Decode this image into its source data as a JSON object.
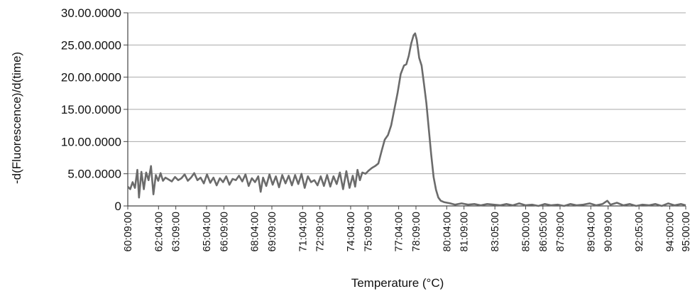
{
  "chart_data": {
    "type": "line",
    "title": "",
    "xlabel": "Temperature (°C)",
    "ylabel": "-d(Fluorescence)/d(time)",
    "ylim": [
      0,
      30
    ],
    "grid": "horizontal",
    "y_ticks": [
      {
        "value": 0,
        "label": "0"
      },
      {
        "value": 5,
        "label": "5.00.0000"
      },
      {
        "value": 10,
        "label": "10.00.0000"
      },
      {
        "value": 15,
        "label": "15.00.0000"
      },
      {
        "value": 20,
        "label": "20.00.0000"
      },
      {
        "value": 25,
        "label": "25.00.0000"
      },
      {
        "value": 30,
        "label": "30.00.0000"
      }
    ],
    "x_range": [
      60.15,
      95.0
    ],
    "x_ticks": [
      {
        "value": 60.15,
        "label": "60:09:00"
      },
      {
        "value": 62.07,
        "label": "62:04:00"
      },
      {
        "value": 63.15,
        "label": "63:09:00"
      },
      {
        "value": 65.07,
        "label": "65:04:00"
      },
      {
        "value": 66.15,
        "label": "66:09:00"
      },
      {
        "value": 68.07,
        "label": "68:04:00"
      },
      {
        "value": 69.15,
        "label": "69:09:00"
      },
      {
        "value": 71.07,
        "label": "71:04:00"
      },
      {
        "value": 72.15,
        "label": "72:09:00"
      },
      {
        "value": 74.07,
        "label": "74:04:00"
      },
      {
        "value": 75.15,
        "label": "75:09:00"
      },
      {
        "value": 77.07,
        "label": "77:04:00"
      },
      {
        "value": 78.15,
        "label": "78:09:00"
      },
      {
        "value": 80.07,
        "label": "80:04:00"
      },
      {
        "value": 81.15,
        "label": "81:09:00"
      },
      {
        "value": 83.08,
        "label": "83:05:00"
      },
      {
        "value": 85.0,
        "label": "85:00:00"
      },
      {
        "value": 86.08,
        "label": "86:05:00"
      },
      {
        "value": 87.15,
        "label": "87:09:00"
      },
      {
        "value": 89.07,
        "label": "89:04:00"
      },
      {
        "value": 90.15,
        "label": "90:09:00"
      },
      {
        "value": 92.08,
        "label": "92:05:00"
      },
      {
        "value": 94.0,
        "label": "94:00:00"
      },
      {
        "value": 95.0,
        "label": "95:00:00"
      }
    ],
    "series": [
      {
        "color": "#6b6b6b",
        "points": [
          [
            60.15,
            3.0
          ],
          [
            60.3,
            2.6
          ],
          [
            60.45,
            3.7
          ],
          [
            60.6,
            2.8
          ],
          [
            60.75,
            5.6
          ],
          [
            60.85,
            1.3
          ],
          [
            61.0,
            5.3
          ],
          [
            61.15,
            2.6
          ],
          [
            61.3,
            5.2
          ],
          [
            61.45,
            4.0
          ],
          [
            61.6,
            6.2
          ],
          [
            61.75,
            1.8
          ],
          [
            61.9,
            4.8
          ],
          [
            62.05,
            3.9
          ],
          [
            62.2,
            5.1
          ],
          [
            62.35,
            3.9
          ],
          [
            62.5,
            4.4
          ],
          [
            62.7,
            4.1
          ],
          [
            62.9,
            3.8
          ],
          [
            63.1,
            4.5
          ],
          [
            63.3,
            4.0
          ],
          [
            63.5,
            4.3
          ],
          [
            63.7,
            4.9
          ],
          [
            63.9,
            3.9
          ],
          [
            64.1,
            4.4
          ],
          [
            64.3,
            5.1
          ],
          [
            64.5,
            4.0
          ],
          [
            64.7,
            4.4
          ],
          [
            64.9,
            3.5
          ],
          [
            65.1,
            4.9
          ],
          [
            65.3,
            3.6
          ],
          [
            65.5,
            4.4
          ],
          [
            65.7,
            3.2
          ],
          [
            65.9,
            4.3
          ],
          [
            66.1,
            3.7
          ],
          [
            66.3,
            4.6
          ],
          [
            66.5,
            3.3
          ],
          [
            66.7,
            4.2
          ],
          [
            66.9,
            4.0
          ],
          [
            67.1,
            4.7
          ],
          [
            67.3,
            3.8
          ],
          [
            67.5,
            4.9
          ],
          [
            67.7,
            3.1
          ],
          [
            67.9,
            4.3
          ],
          [
            68.1,
            3.7
          ],
          [
            68.3,
            4.6
          ],
          [
            68.45,
            2.2
          ],
          [
            68.6,
            4.4
          ],
          [
            68.8,
            3.1
          ],
          [
            69.0,
            4.9
          ],
          [
            69.2,
            3.3
          ],
          [
            69.4,
            4.6
          ],
          [
            69.6,
            2.9
          ],
          [
            69.8,
            4.8
          ],
          [
            70.0,
            3.5
          ],
          [
            70.2,
            4.7
          ],
          [
            70.4,
            3.2
          ],
          [
            70.6,
            4.8
          ],
          [
            70.8,
            3.4
          ],
          [
            71.0,
            5.0
          ],
          [
            71.2,
            2.8
          ],
          [
            71.4,
            4.6
          ],
          [
            71.6,
            3.7
          ],
          [
            71.8,
            4.0
          ],
          [
            72.0,
            3.2
          ],
          [
            72.2,
            4.6
          ],
          [
            72.4,
            3.1
          ],
          [
            72.6,
            4.8
          ],
          [
            72.8,
            3.0
          ],
          [
            73.0,
            4.6
          ],
          [
            73.2,
            3.4
          ],
          [
            73.4,
            5.2
          ],
          [
            73.6,
            2.6
          ],
          [
            73.8,
            5.4
          ],
          [
            74.0,
            2.8
          ],
          [
            74.2,
            4.7
          ],
          [
            74.35,
            3.0
          ],
          [
            74.5,
            5.6
          ],
          [
            74.65,
            4.0
          ],
          [
            74.8,
            5.2
          ],
          [
            75.0,
            5.0
          ],
          [
            75.2,
            5.5
          ],
          [
            75.4,
            5.9
          ],
          [
            75.6,
            6.2
          ],
          [
            75.8,
            6.6
          ],
          [
            76.0,
            8.5
          ],
          [
            76.2,
            10.3
          ],
          [
            76.4,
            11.0
          ],
          [
            76.6,
            12.5
          ],
          [
            76.8,
            15.0
          ],
          [
            77.0,
            17.5
          ],
          [
            77.2,
            20.5
          ],
          [
            77.4,
            21.8
          ],
          [
            77.55,
            22.0
          ],
          [
            77.7,
            23.3
          ],
          [
            77.85,
            25.2
          ],
          [
            78.0,
            26.5
          ],
          [
            78.1,
            26.8
          ],
          [
            78.2,
            25.8
          ],
          [
            78.35,
            23.0
          ],
          [
            78.5,
            21.8
          ],
          [
            78.65,
            19.0
          ],
          [
            78.8,
            16.0
          ],
          [
            78.95,
            12.0
          ],
          [
            79.1,
            8.0
          ],
          [
            79.25,
            4.5
          ],
          [
            79.4,
            2.5
          ],
          [
            79.55,
            1.3
          ],
          [
            79.7,
            0.8
          ],
          [
            79.9,
            0.6
          ],
          [
            80.1,
            0.5
          ],
          [
            80.3,
            0.4
          ],
          [
            80.6,
            0.2
          ],
          [
            81.0,
            0.4
          ],
          [
            81.4,
            0.2
          ],
          [
            81.8,
            0.3
          ],
          [
            82.2,
            0.1
          ],
          [
            82.6,
            0.3
          ],
          [
            83.0,
            0.2
          ],
          [
            83.4,
            0.1
          ],
          [
            83.8,
            0.3
          ],
          [
            84.2,
            0.1
          ],
          [
            84.6,
            0.4
          ],
          [
            85.0,
            0.1
          ],
          [
            85.4,
            0.2
          ],
          [
            85.8,
            0.0
          ],
          [
            86.2,
            0.3
          ],
          [
            86.6,
            0.1
          ],
          [
            87.0,
            0.2
          ],
          [
            87.4,
            0.0
          ],
          [
            87.8,
            0.3
          ],
          [
            88.2,
            0.1
          ],
          [
            88.6,
            0.2
          ],
          [
            89.0,
            0.4
          ],
          [
            89.4,
            0.1
          ],
          [
            89.8,
            0.3
          ],
          [
            90.1,
            0.8
          ],
          [
            90.3,
            0.2
          ],
          [
            90.7,
            0.5
          ],
          [
            91.1,
            0.1
          ],
          [
            91.5,
            0.3
          ],
          [
            91.9,
            0.0
          ],
          [
            92.3,
            0.2
          ],
          [
            92.7,
            0.1
          ],
          [
            93.1,
            0.3
          ],
          [
            93.5,
            0.0
          ],
          [
            93.9,
            0.4
          ],
          [
            94.3,
            0.1
          ],
          [
            94.7,
            0.3
          ],
          [
            95.0,
            0.1
          ]
        ]
      }
    ]
  }
}
